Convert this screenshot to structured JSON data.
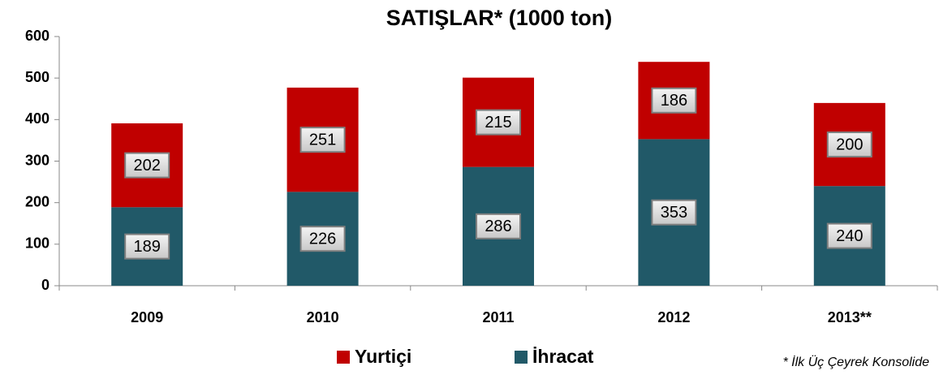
{
  "chart_data": {
    "type": "stacked_bar",
    "title": "SATIŞLAR* (1000 ton)",
    "categories": [
      "2009",
      "2010",
      "2011",
      "2012",
      "2013**"
    ],
    "series": [
      {
        "name": "İhracat",
        "color": "#215968",
        "values": [
          189,
          226,
          286,
          353,
          240
        ]
      },
      {
        "name": "Yurtiçi",
        "color": "#c00000",
        "values": [
          202,
          251,
          215,
          186,
          200
        ]
      }
    ],
    "ylim": [
      0,
      600
    ],
    "yticks": [
      0,
      100,
      200,
      300,
      400,
      500,
      600
    ],
    "grid": false,
    "legend": "bottom",
    "note": "* İlk Üç Çeyrek Konsolide"
  }
}
